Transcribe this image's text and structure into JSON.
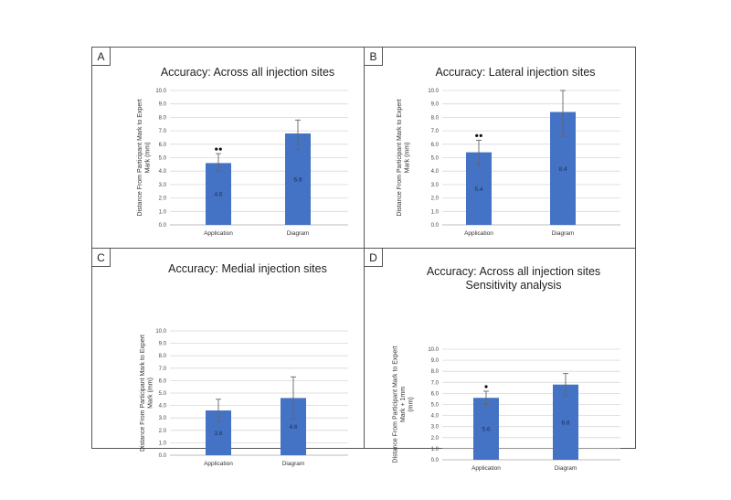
{
  "chart_data": [
    {
      "panel": "A",
      "type": "bar",
      "title": [
        "Accuracy: Across all injection sites"
      ],
      "ylabel": [
        "Distance From Participant Mark to Expert",
        "Mark (mm)"
      ],
      "xlabel": "",
      "ylim": [
        0,
        10
      ],
      "yticks": [
        "0.0",
        "1.0",
        "2.0",
        "3.0",
        "4.0",
        "5.0",
        "6.0",
        "7.0",
        "8.0",
        "9.0",
        "10.0"
      ],
      "categories": [
        "Application",
        "Diagram"
      ],
      "values": [
        4.6,
        6.8
      ],
      "data_labels": [
        "4.6",
        "6.8"
      ],
      "error_upper": [
        5.3,
        7.8
      ],
      "error_lower": [
        4.0,
        5.6
      ],
      "significance_markers": [
        "••",
        ""
      ],
      "grid": true,
      "color": "#4472c4"
    },
    {
      "panel": "B",
      "type": "bar",
      "title": [
        "Accuracy: Lateral injection sites"
      ],
      "ylabel": [
        "Distance From Participant Mark to Expert",
        "Mark (mm)"
      ],
      "xlabel": "",
      "ylim": [
        0,
        10
      ],
      "yticks": [
        "0.0",
        "1.0",
        "2.0",
        "3.0",
        "4.0",
        "5.0",
        "6.0",
        "7.0",
        "8.0",
        "9.0",
        "10.0"
      ],
      "categories": [
        "Application",
        "Diagram"
      ],
      "values": [
        5.4,
        8.4
      ],
      "data_labels": [
        "5.4",
        "8.4"
      ],
      "error_upper": [
        6.3,
        10.0
      ],
      "error_lower": [
        4.5,
        6.6
      ],
      "significance_markers": [
        "••",
        ""
      ],
      "grid": true,
      "color": "#4472c4"
    },
    {
      "panel": "C",
      "type": "bar",
      "title": [
        "Accuracy: Medial injection sites"
      ],
      "ylabel": [
        "Distance From Participant Mark to Expert",
        "Mark (mm)"
      ],
      "xlabel": "",
      "ylim": [
        0,
        10
      ],
      "yticks": [
        "0.0",
        "1.0",
        "2.0",
        "3.0",
        "4.0",
        "5.0",
        "6.0",
        "7.0",
        "8.0",
        "9.0",
        "10.0"
      ],
      "categories": [
        "Application",
        "Diagram"
      ],
      "values": [
        3.6,
        4.6
      ],
      "data_labels": [
        "3.6",
        "4.6"
      ],
      "error_upper": [
        4.5,
        6.3
      ],
      "error_lower": [
        2.7,
        2.9
      ],
      "significance_markers": [
        "",
        ""
      ],
      "grid": true,
      "color": "#4472c4"
    },
    {
      "panel": "D",
      "type": "bar",
      "title": [
        "Accuracy: Across all injection sites",
        "Sensitivity analysis"
      ],
      "ylabel": [
        "Distance From Participant Mark to Expert",
        "Mark + 1mm",
        "(mm)"
      ],
      "xlabel": "",
      "ylim": [
        0,
        10
      ],
      "yticks": [
        "0.0",
        "1.0",
        "2.0",
        "3.0",
        "4.0",
        "5.0",
        "6.0",
        "7.0",
        "8.0",
        "9.0",
        "10.0"
      ],
      "categories": [
        "Application",
        "Diagram"
      ],
      "values": [
        5.6,
        6.8
      ],
      "data_labels": [
        "5.6",
        "6.8"
      ],
      "error_upper": [
        6.2,
        7.8
      ],
      "error_lower": [
        5.0,
        5.8
      ],
      "significance_markers": [
        "•",
        ""
      ],
      "grid": true,
      "color": "#4472c4"
    }
  ]
}
